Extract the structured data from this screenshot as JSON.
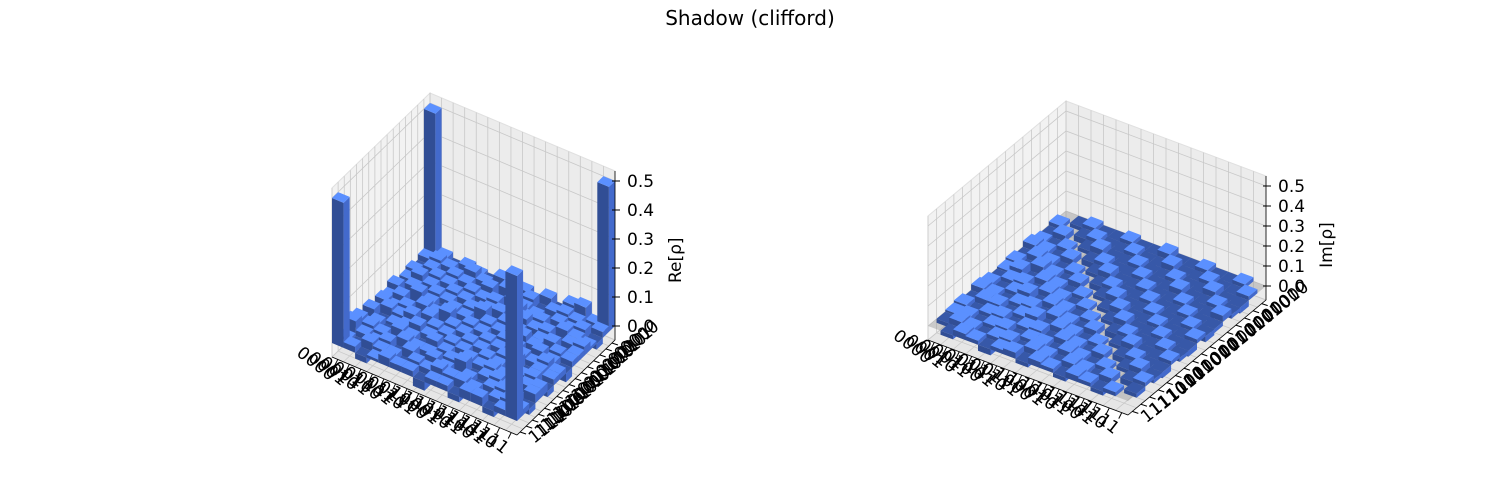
{
  "figure": {
    "title": "Shadow (clifford)"
  },
  "chart_data": [
    {
      "type": "bar3d",
      "zlabel": "Re[ρ]",
      "zlim": [
        0,
        0.5
      ],
      "zticks": [
        "0.0",
        "0.1",
        "0.2",
        "0.3",
        "0.4",
        "0.5"
      ],
      "row_labels": [
        "0000",
        "0001",
        "0010",
        "0011",
        "0100",
        "0101",
        "0110",
        "0111",
        "1000",
        "1001",
        "1010",
        "1011",
        "1100",
        "1101",
        "1110",
        "1111"
      ],
      "col_labels": [
        "0000",
        "0001",
        "0010",
        "0011",
        "0100",
        "0101",
        "0110",
        "0111",
        "1000",
        "1001",
        "1010",
        "1011",
        "1100",
        "1101",
        "1110",
        "1111"
      ],
      "bar_color": "#4f7df0",
      "values": [
        [
          0.5,
          0.02,
          -0.03,
          0.02,
          0.01,
          -0.02,
          0.03,
          0.01,
          0.02,
          -0.01,
          0.03,
          -0.02,
          0.04,
          0.05,
          0.01,
          0.5
        ],
        [
          0.02,
          0.03,
          0.02,
          -0.03,
          0.04,
          0.02,
          -0.02,
          0.03,
          0.01,
          0.03,
          -0.02,
          0.02,
          0.03,
          0.02,
          -0.01,
          0.02
        ],
        [
          -0.03,
          0.02,
          -0.02,
          0.03,
          0.02,
          -0.03,
          0.04,
          -0.02,
          0.03,
          0.02,
          0.01,
          -0.03,
          0.02,
          0.01,
          0.03,
          -0.02
        ],
        [
          0.02,
          -0.03,
          0.03,
          0.02,
          -0.02,
          0.03,
          0.02,
          0.03,
          -0.03,
          0.04,
          0.02,
          0.03,
          -0.02,
          0.03,
          0.02,
          0.01
        ],
        [
          0.01,
          0.04,
          0.02,
          -0.02,
          0.03,
          0.02,
          -0.03,
          0.02,
          0.03,
          -0.02,
          0.04,
          0.02,
          0.03,
          -0.02,
          0.02,
          0.03
        ],
        [
          -0.02,
          0.02,
          -0.03,
          0.03,
          0.02,
          -0.02,
          0.03,
          0.04,
          -0.02,
          0.03,
          0.02,
          -0.03,
          0.02,
          0.03,
          -0.02,
          0.02
        ],
        [
          0.03,
          -0.02,
          0.04,
          0.02,
          -0.03,
          0.03,
          0.02,
          -0.02,
          0.03,
          0.02,
          -0.03,
          0.04,
          0.02,
          -0.02,
          0.03,
          0.02
        ],
        [
          0.01,
          0.03,
          -0.02,
          0.03,
          0.02,
          0.04,
          -0.02,
          0.03,
          0.02,
          -0.03,
          0.03,
          0.02,
          -0.02,
          0.04,
          0.02,
          -0.03
        ],
        [
          0.02,
          0.01,
          0.03,
          -0.03,
          0.03,
          -0.02,
          0.03,
          0.02,
          -0.02,
          0.03,
          0.02,
          -0.02,
          0.03,
          0.02,
          0.04,
          0.02
        ],
        [
          -0.01,
          0.03,
          0.02,
          0.04,
          -0.02,
          0.03,
          0.02,
          -0.03,
          0.03,
          0.02,
          -0.02,
          0.03,
          0.04,
          -0.02,
          0.03,
          0.02
        ],
        [
          0.03,
          -0.02,
          0.01,
          0.02,
          0.04,
          0.02,
          -0.03,
          0.03,
          0.02,
          -0.02,
          0.03,
          0.02,
          -0.03,
          0.02,
          0.03,
          -0.02
        ],
        [
          -0.02,
          0.02,
          -0.03,
          0.03,
          0.02,
          -0.03,
          0.04,
          0.02,
          -0.02,
          0.03,
          0.02,
          0.03,
          0.02,
          -0.03,
          0.02,
          0.03
        ],
        [
          0.04,
          0.03,
          0.02,
          -0.02,
          0.03,
          0.02,
          0.02,
          -0.02,
          0.03,
          0.04,
          -0.03,
          0.02,
          0.03,
          0.02,
          -0.02,
          0.03
        ],
        [
          0.05,
          0.02,
          0.01,
          0.03,
          -0.02,
          0.03,
          -0.02,
          0.04,
          0.02,
          -0.02,
          0.02,
          -0.03,
          0.02,
          0.03,
          0.02,
          -0.02
        ],
        [
          0.01,
          -0.01,
          0.03,
          0.02,
          0.02,
          -0.02,
          0.03,
          0.02,
          0.04,
          0.03,
          0.03,
          0.02,
          -0.02,
          0.02,
          0.03,
          0.02
        ],
        [
          0.5,
          0.02,
          -0.02,
          0.01,
          0.03,
          0.02,
          0.02,
          -0.03,
          0.02,
          0.02,
          -0.02,
          0.03,
          0.03,
          -0.02,
          0.02,
          0.5
        ]
      ]
    },
    {
      "type": "bar3d",
      "zlabel": "Im[ρ]",
      "zlim": [
        0,
        0.5
      ],
      "zticks": [
        "0.0",
        "0.1",
        "0.2",
        "0.3",
        "0.4",
        "0.5"
      ],
      "row_labels": [
        "0000",
        "0001",
        "0010",
        "0011",
        "0100",
        "0101",
        "0110",
        "0111",
        "1000",
        "1001",
        "1010",
        "1011",
        "1100",
        "1101",
        "1110",
        "1111"
      ],
      "col_labels": [
        "0000",
        "0001",
        "0010",
        "0011",
        "0100",
        "0101",
        "0110",
        "0111",
        "1000",
        "1001",
        "1010",
        "1011",
        "1100",
        "1101",
        "1110",
        "1111"
      ],
      "bar_color": "#4f7df0",
      "values": [
        [
          0.0,
          0.02,
          -0.02,
          0.01,
          0.03,
          -0.02,
          0.02,
          0.01,
          -0.03,
          0.02,
          0.03,
          -0.02,
          0.02,
          0.01,
          -0.02,
          0.0
        ],
        [
          -0.02,
          0.0,
          0.03,
          -0.02,
          0.02,
          0.03,
          -0.02,
          0.04,
          0.02,
          -0.03,
          0.02,
          0.03,
          -0.02,
          0.02,
          0.03,
          -0.02
        ],
        [
          0.02,
          -0.03,
          0.0,
          0.02,
          -0.03,
          0.02,
          0.04,
          -0.02,
          0.03,
          0.02,
          -0.02,
          0.03,
          0.02,
          -0.03,
          0.02,
          0.03
        ],
        [
          -0.01,
          0.02,
          -0.02,
          0.0,
          0.03,
          -0.02,
          0.02,
          0.03,
          -0.02,
          0.04,
          0.02,
          -0.03,
          0.03,
          0.02,
          -0.02,
          0.02
        ],
        [
          -0.03,
          -0.02,
          0.03,
          -0.03,
          0.0,
          0.02,
          -0.03,
          0.02,
          0.03,
          -0.02,
          0.03,
          0.02,
          -0.02,
          0.03,
          0.02,
          -0.03
        ],
        [
          0.02,
          -0.03,
          -0.02,
          0.02,
          -0.02,
          0.0,
          0.03,
          -0.02,
          0.02,
          0.03,
          -0.02,
          0.04,
          0.02,
          -0.02,
          0.03,
          0.02
        ],
        [
          -0.02,
          0.02,
          -0.04,
          -0.02,
          0.03,
          -0.03,
          0.0,
          0.02,
          -0.03,
          0.02,
          0.03,
          -0.02,
          0.03,
          0.02,
          -0.02,
          0.03
        ],
        [
          -0.01,
          -0.04,
          0.02,
          -0.03,
          -0.02,
          0.02,
          -0.02,
          0.0,
          0.02,
          -0.03,
          0.02,
          0.03,
          -0.02,
          0.02,
          0.03,
          -0.02
        ],
        [
          0.03,
          -0.02,
          -0.03,
          0.02,
          -0.03,
          -0.02,
          0.03,
          -0.02,
          0.0,
          0.02,
          -0.03,
          0.02,
          0.03,
          -0.02,
          0.02,
          0.03
        ],
        [
          -0.02,
          0.03,
          -0.02,
          -0.04,
          0.02,
          -0.03,
          -0.02,
          0.03,
          -0.02,
          0.0,
          0.03,
          -0.02,
          0.02,
          0.03,
          -0.02,
          0.02
        ],
        [
          -0.03,
          -0.02,
          0.02,
          -0.02,
          -0.03,
          0.02,
          -0.03,
          -0.02,
          0.03,
          -0.03,
          0.0,
          0.02,
          -0.03,
          0.02,
          0.03,
          -0.02
        ],
        [
          0.02,
          -0.03,
          -0.03,
          0.03,
          -0.02,
          -0.04,
          0.02,
          -0.03,
          -0.02,
          0.02,
          -0.02,
          0.0,
          0.03,
          -0.02,
          0.02,
          0.03
        ],
        [
          -0.02,
          0.02,
          -0.02,
          -0.03,
          0.02,
          -0.02,
          -0.03,
          0.02,
          -0.03,
          -0.02,
          0.03,
          -0.03,
          0.0,
          0.02,
          -0.03,
          0.02
        ],
        [
          -0.01,
          -0.02,
          0.03,
          -0.02,
          -0.03,
          0.02,
          -0.02,
          -0.02,
          0.02,
          -0.03,
          -0.02,
          0.02,
          -0.02,
          0.0,
          0.03,
          -0.02
        ],
        [
          0.02,
          -0.03,
          -0.02,
          0.02,
          -0.02,
          -0.03,
          0.02,
          -0.03,
          -0.02,
          0.02,
          -0.03,
          -0.02,
          0.03,
          -0.03,
          0.0,
          0.02
        ],
        [
          0.0,
          0.02,
          -0.03,
          -0.02,
          0.03,
          -0.02,
          -0.03,
          0.02,
          -0.03,
          -0.02,
          0.02,
          -0.03,
          -0.02,
          0.02,
          -0.02,
          0.0
        ]
      ]
    }
  ]
}
